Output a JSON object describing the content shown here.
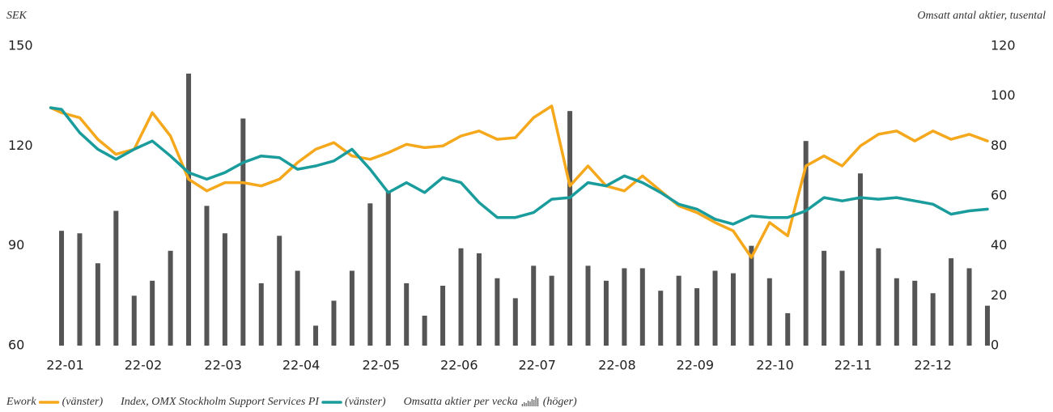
{
  "chart_data": {
    "type": "line",
    "y_label": "SEK",
    "y2_label": "Omsatt antal aktier, tusental",
    "xlim": [
      0,
      53
    ],
    "xticks": [
      {
        "value": 1.2,
        "label": "22-01"
      },
      {
        "value": 5.5,
        "label": "22-02"
      },
      {
        "value": 9.9,
        "label": "22-03"
      },
      {
        "value": 14.2,
        "label": "22-04"
      },
      {
        "value": 18.6,
        "label": "22-05"
      },
      {
        "value": 22.9,
        "label": "22-06"
      },
      {
        "value": 27.2,
        "label": "22-07"
      },
      {
        "value": 31.6,
        "label": "22-08"
      },
      {
        "value": 35.9,
        "label": "22-09"
      },
      {
        "value": 40.3,
        "label": "22-10"
      },
      {
        "value": 44.6,
        "label": "22-11"
      },
      {
        "value": 49.0,
        "label": "22-12"
      }
    ],
    "ylim": [
      60,
      150
    ],
    "yticks": [
      60,
      90,
      120,
      150
    ],
    "y2lim": [
      0,
      120
    ],
    "y2ticks": [
      0,
      20,
      40,
      60,
      80,
      100,
      120
    ],
    "grid": false,
    "series": [
      {
        "name": "Omsatta aktier per vecka",
        "legend_note": "(höger)",
        "type": "bar",
        "axis": "y2",
        "color": "#555555",
        "x": [
          1,
          2,
          3,
          4,
          5,
          6,
          7,
          8,
          9,
          10,
          11,
          12,
          13,
          14,
          15,
          16,
          17,
          18,
          19,
          20,
          21,
          22,
          23,
          24,
          25,
          26,
          27,
          28,
          29,
          30,
          31,
          32,
          33,
          34,
          35,
          36,
          37,
          38,
          39,
          40,
          41,
          42,
          43,
          44,
          45,
          46,
          47,
          48,
          49,
          50,
          51,
          52
        ],
        "values": [
          46,
          45,
          33,
          54,
          20,
          26,
          38,
          109,
          56,
          45,
          91,
          25,
          44,
          30,
          8,
          18,
          30,
          57,
          62,
          25,
          12,
          24,
          39,
          37,
          27,
          19,
          32,
          28,
          94,
          32,
          26,
          31,
          31,
          22,
          28,
          23,
          30,
          29,
          40,
          27,
          13,
          82,
          38,
          30,
          69,
          39,
          27,
          26,
          21,
          35,
          31,
          16
        ]
      },
      {
        "name": "Ework",
        "legend_note": "(vänster)",
        "type": "line",
        "axis": "y",
        "color": "#f5a81c",
        "x": [
          0.4,
          1,
          2,
          3,
          4,
          5,
          6,
          7,
          8,
          9,
          10,
          11,
          12,
          13,
          14,
          15,
          16,
          17,
          18,
          19,
          20,
          21,
          22,
          23,
          24,
          25,
          26,
          27,
          28,
          29,
          30,
          31,
          32,
          33,
          34,
          35,
          36,
          37,
          38,
          39,
          40,
          41,
          42,
          43,
          44,
          45,
          46,
          47,
          48,
          49,
          50,
          51,
          52
        ],
        "values": [
          131.5,
          130,
          128.5,
          122,
          117.5,
          119,
          130,
          123,
          110,
          106.5,
          109,
          109,
          108,
          110,
          115,
          119,
          121,
          117,
          116,
          118,
          120.5,
          119.5,
          120,
          123,
          124.5,
          122,
          122.5,
          128.5,
          132,
          108,
          114,
          108,
          106.5,
          111,
          106.5,
          102,
          100,
          97,
          94.5,
          86.5,
          97,
          93,
          114,
          117,
          114,
          120,
          123.5,
          124.5,
          121.5,
          124.5,
          122,
          123.5,
          121.5
        ]
      },
      {
        "name": "Index, OMX Stockholm Support Services PI",
        "legend_note": "(vänster)",
        "type": "line",
        "axis": "y",
        "color": "#1a9c9c",
        "x": [
          0.4,
          1,
          2,
          3,
          4,
          5,
          6,
          7,
          8,
          9,
          10,
          11,
          12,
          13,
          14,
          15,
          16,
          17,
          18,
          19,
          20,
          21,
          22,
          23,
          24,
          25,
          26,
          27,
          28,
          29,
          30,
          31,
          32,
          33,
          34,
          35,
          36,
          37,
          38,
          39,
          40,
          41,
          42,
          43,
          44,
          45,
          46,
          47,
          48,
          49,
          50,
          51,
          52
        ],
        "values": [
          131.5,
          131,
          124,
          119,
          116,
          119,
          121.5,
          117,
          112,
          110,
          112,
          115,
          117,
          116.5,
          113,
          114,
          115.5,
          119,
          113,
          106,
          109,
          106,
          110.5,
          109,
          103,
          98.5,
          98.5,
          100,
          104,
          104.5,
          109,
          108,
          111,
          109,
          106,
          102.5,
          101,
          98,
          96.5,
          99,
          98.5,
          98.5,
          100.5,
          104.5,
          103.5,
          104.5,
          104,
          104.5,
          103.5,
          102.5,
          99.5,
          100.5,
          101
        ]
      }
    ],
    "legend_order": [
      1,
      2,
      0
    ]
  }
}
